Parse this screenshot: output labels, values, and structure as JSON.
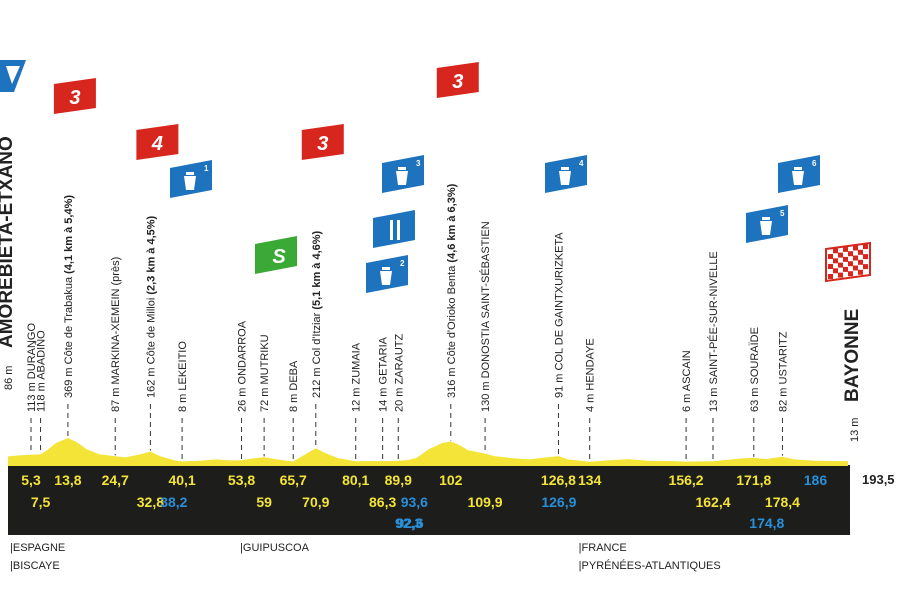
{
  "start": {
    "name": "AMOREBIETA-ETXANO",
    "alt": "86 m"
  },
  "finish": {
    "name": "BAYONNE",
    "alt": "13 m",
    "total_km": "193,5"
  },
  "places": [
    {
      "label": "113 m DURANGO",
      "km": 5.3
    },
    {
      "label": "118 m ABADIÑO",
      "km": 7.5
    },
    {
      "label": "87 m MARKINA-XEMEIN (près)",
      "km": 24.7
    },
    {
      "label": "8 m LEKEITIO",
      "km": 40.1
    },
    {
      "label": "26 m ONDARROA",
      "km": 53.8
    },
    {
      "label": "72 m MUTRIKU",
      "km": 59
    },
    {
      "label": "8 m DEBA",
      "km": 65.7
    },
    {
      "label": "12 m ZUMAIA",
      "km": 80.1
    },
    {
      "label": "14 m GETARIA",
      "km": 86.3
    },
    {
      "label": "20 m ZARAUTZ",
      "km": 89.9
    },
    {
      "label": "130 m DONOSTIA SAINT-SÉBASTIEN",
      "km": 109.9
    },
    {
      "label": "4 m HENDAYE",
      "km": 134
    },
    {
      "label": "6 m ASCAIN",
      "km": 156.2
    },
    {
      "label": "13 m SAINT-PÉE-SUR-NIVELLE",
      "km": 162.4
    },
    {
      "label": "63 m SOURAÏDE",
      "km": 171.8
    },
    {
      "label": "82 m USTARITZ",
      "km": 178.4
    }
  ],
  "climbs": [
    {
      "alt": "369 m",
      "name": "Côte de Trabakua",
      "detail": "(4,1 km à 5,4%)",
      "cat": "3",
      "km": 13.8
    },
    {
      "alt": "162 m",
      "name": "Côte de Milloi",
      "detail": "(2,3 km à 4,5%)",
      "cat": "4",
      "km": 32.8
    },
    {
      "alt": "212 m",
      "name": "Col d'Itziar",
      "detail": "(5,1 km à 4,6%)",
      "cat": "3",
      "km": 70.9
    },
    {
      "alt": "316 m",
      "name": "Côte d'Orioko Benta",
      "detail": "(4,6 km à 6,3%)",
      "cat": "3",
      "km": 102
    },
    {
      "alt": "91 m",
      "name": "COL DE GAINTXURIZKETA",
      "detail": "",
      "cat": "4",
      "km": 126.8
    }
  ],
  "sprint": {
    "label": "S",
    "km": 59
  },
  "feed": {
    "km": 89.9
  },
  "water_points": [
    {
      "num": "1",
      "km": 38.2
    },
    {
      "num": "2",
      "km": 92.3
    },
    {
      "num": "3",
      "km": 92.6
    },
    {
      "num": "4",
      "km": 126.9
    },
    {
      "num": "5",
      "km": 174.8
    },
    {
      "num": "6",
      "km": 186
    }
  ],
  "km_row1": [
    {
      "v": "5,3",
      "km": 5.3
    },
    {
      "v": "13,8",
      "km": 13.8
    },
    {
      "v": "24,7",
      "km": 24.7
    },
    {
      "v": "40,1",
      "km": 40.1
    },
    {
      "v": "53,8",
      "km": 53.8
    },
    {
      "v": "65,7",
      "km": 65.7
    },
    {
      "v": "80,1",
      "km": 80.1
    },
    {
      "v": "89,9",
      "km": 89.9
    },
    {
      "v": "102",
      "km": 102
    },
    {
      "v": "126,8",
      "km": 126.8
    },
    {
      "v": "134",
      "km": 134
    },
    {
      "v": "156,2",
      "km": 156.2
    },
    {
      "v": "171,8",
      "km": 171.8
    },
    {
      "v": "186",
      "km": 186,
      "color": "blue"
    }
  ],
  "km_row2": [
    {
      "v": "7,5",
      "km": 7.5
    },
    {
      "v": "32,8",
      "km": 32.8
    },
    {
      "v": "38,2",
      "km": 38.2,
      "color": "blue"
    },
    {
      "v": "59",
      "km": 59
    },
    {
      "v": "70,9",
      "km": 70.9
    },
    {
      "v": "86,3",
      "km": 86.3
    },
    {
      "v": "93,6",
      "km": 93.6,
      "color": "blue"
    },
    {
      "v": "109,9",
      "km": 109.9
    },
    {
      "v": "126,9",
      "km": 126.9,
      "color": "blue"
    },
    {
      "v": "162,4",
      "km": 162.4
    },
    {
      "v": "178,4",
      "km": 178.4
    }
  ],
  "km_row3": [
    {
      "v": "92,3",
      "km": 92.3,
      "color": "blue"
    },
    {
      "v": "92,6",
      "km": 92.6,
      "color": "blue"
    },
    {
      "v": "174,8",
      "km": 174.8,
      "color": "blue"
    }
  ],
  "regions": [
    {
      "lines": [
        "ESPAGNE",
        "BISCAYE"
      ],
      "km": 0
    },
    {
      "lines": [
        "GUIPUSCOA"
      ],
      "km": 53
    },
    {
      "lines": [
        "FRANCE",
        "PYRÉNÉES-ATLANTIQUES"
      ],
      "km": 131
    }
  ],
  "elevation_profile": [
    [
      0,
      86
    ],
    [
      3,
      105
    ],
    [
      5.3,
      113
    ],
    [
      7.5,
      118
    ],
    [
      9,
      180
    ],
    [
      11,
      290
    ],
    [
      13.8,
      369
    ],
    [
      16,
      300
    ],
    [
      18,
      200
    ],
    [
      21,
      120
    ],
    [
      24.7,
      87
    ],
    [
      27,
      70
    ],
    [
      30,
      110
    ],
    [
      32.8,
      162
    ],
    [
      35,
      90
    ],
    [
      38.2,
      30
    ],
    [
      40.1,
      8
    ],
    [
      44,
      20
    ],
    [
      48,
      40
    ],
    [
      51,
      25
    ],
    [
      53.8,
      26
    ],
    [
      57,
      60
    ],
    [
      59,
      72
    ],
    [
      62,
      40
    ],
    [
      65.7,
      8
    ],
    [
      68,
      100
    ],
    [
      70.9,
      212
    ],
    [
      73,
      140
    ],
    [
      76,
      60
    ],
    [
      80.1,
      12
    ],
    [
      84,
      15
    ],
    [
      86.3,
      14
    ],
    [
      88,
      15
    ],
    [
      89.9,
      20
    ],
    [
      92,
      30
    ],
    [
      94,
      60
    ],
    [
      97,
      200
    ],
    [
      100,
      290
    ],
    [
      102,
      316
    ],
    [
      104,
      260
    ],
    [
      106,
      180
    ],
    [
      109.9,
      130
    ],
    [
      112,
      90
    ],
    [
      116,
      60
    ],
    [
      120,
      40
    ],
    [
      124,
      70
    ],
    [
      126.8,
      91
    ],
    [
      129,
      40
    ],
    [
      134,
      4
    ],
    [
      139,
      30
    ],
    [
      143,
      45
    ],
    [
      147,
      20
    ],
    [
      152,
      15
    ],
    [
      156.2,
      6
    ],
    [
      159,
      10
    ],
    [
      162.4,
      13
    ],
    [
      166,
      35
    ],
    [
      169,
      55
    ],
    [
      171.8,
      63
    ],
    [
      174.8,
      45
    ],
    [
      176,
      60
    ],
    [
      178.4,
      82
    ],
    [
      181,
      40
    ],
    [
      186,
      20
    ],
    [
      190,
      15
    ],
    [
      193.5,
      13
    ]
  ],
  "colors": {
    "profile": "#f3e437",
    "band": "#1d1d1b",
    "km_yellow": "#f3e437",
    "km_blue": "#2a8fd9",
    "climb_flag": "#d7261e",
    "water_flag": "#1e73be",
    "sprint_flag": "#3aa935"
  }
}
